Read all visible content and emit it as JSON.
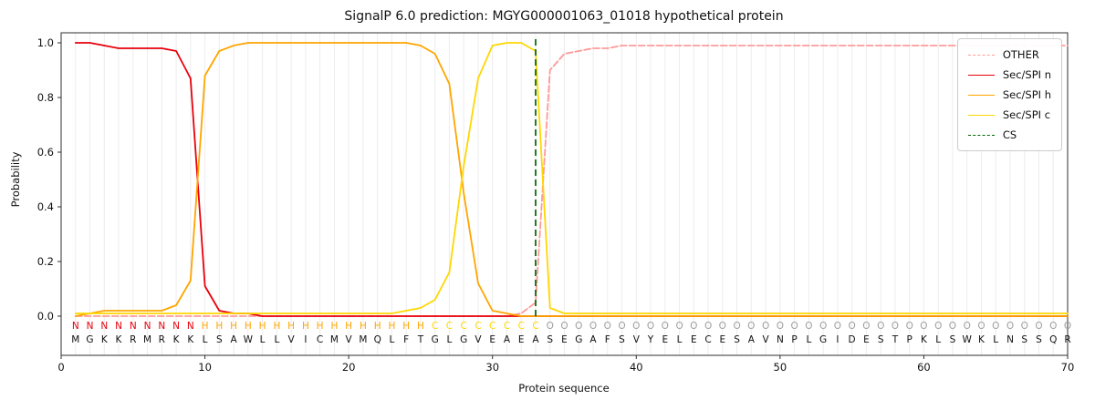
{
  "title": "SignalP 6.0 prediction: MGYG000001063_01018 hypothetical protein",
  "axes": {
    "xlabel": "Protein sequence",
    "ylabel": "Probability",
    "x_ticks": [
      0,
      10,
      20,
      30,
      40,
      50,
      60,
      70
    ],
    "y_ticks": [
      0,
      0.2,
      0.4,
      0.6,
      0.8,
      1
    ]
  },
  "colors": {
    "grid": "#ececec",
    "spine": "#2f2f2f",
    "text": "#111111",
    "region_letters": {
      "N": "#e8000b",
      "H": "#ffa500",
      "C": "#ffd700",
      "O": "#9e9e9e"
    },
    "sequence_letters": "#111111"
  },
  "chart_data": {
    "type": "line",
    "x_range": [
      1,
      70
    ],
    "xlim": [
      0,
      70
    ],
    "ylim": [
      0,
      1
    ],
    "grid": "vertical-line-per-residue",
    "legend_position": "upper right",
    "series": [
      {
        "name": "OTHER",
        "color": "#ff9999",
        "dash": true,
        "values": [
          0,
          0,
          0,
          0,
          0,
          0,
          0,
          0,
          0,
          0,
          0,
          0,
          0,
          0,
          0,
          0,
          0,
          0,
          0,
          0,
          0,
          0,
          0,
          0,
          0,
          0,
          0,
          0,
          0,
          0,
          0,
          0.01,
          0.05,
          0.9,
          0.96,
          0.97,
          0.98,
          0.98,
          0.99,
          0.99,
          0.99,
          0.99,
          0.99,
          0.99,
          0.99,
          0.99,
          0.99,
          0.99,
          0.99,
          0.99,
          0.99,
          0.99,
          0.99,
          0.99,
          0.99,
          0.99,
          0.99,
          0.99,
          0.99,
          0.99,
          0.99,
          0.99,
          0.99,
          0.99,
          0.99,
          0.99,
          0.99,
          0.99,
          0.99,
          0.99
        ]
      },
      {
        "name": "Sec/SPI n",
        "color": "#e8000b",
        "dash": false,
        "values": [
          1,
          1,
          0.99,
          0.98,
          0.98,
          0.98,
          0.98,
          0.97,
          0.87,
          0.11,
          0.02,
          0.01,
          0.01,
          0,
          0,
          0,
          0,
          0,
          0,
          0,
          0,
          0,
          0,
          0,
          0,
          0,
          0,
          0,
          0,
          0,
          0,
          0,
          0,
          0,
          0,
          0,
          0,
          0,
          0,
          0,
          0,
          0,
          0,
          0,
          0,
          0,
          0,
          0,
          0,
          0,
          0,
          0,
          0,
          0,
          0,
          0,
          0,
          0,
          0,
          0,
          0,
          0,
          0,
          0,
          0,
          0,
          0,
          0,
          0,
          0
        ]
      },
      {
        "name": "Sec/SPI h",
        "color": "#ffa500",
        "dash": false,
        "values": [
          0,
          0.01,
          0.02,
          0.02,
          0.02,
          0.02,
          0.02,
          0.04,
          0.13,
          0.88,
          0.97,
          0.99,
          1,
          1,
          1,
          1,
          1,
          1,
          1,
          1,
          1,
          1,
          1,
          1,
          0.99,
          0.96,
          0.85,
          0.45,
          0.12,
          0.02,
          0.01,
          0,
          0,
          0,
          0,
          0,
          0,
          0,
          0,
          0,
          0,
          0,
          0,
          0,
          0,
          0,
          0,
          0,
          0,
          0,
          0,
          0,
          0,
          0,
          0,
          0,
          0,
          0,
          0,
          0,
          0,
          0,
          0,
          0,
          0,
          0,
          0,
          0,
          0,
          0
        ]
      },
      {
        "name": "Sec/SPI c",
        "color": "#ffd700",
        "dash": false,
        "values": [
          0.01,
          0.01,
          0.01,
          0.01,
          0.01,
          0.01,
          0.01,
          0.01,
          0.01,
          0.01,
          0.01,
          0.01,
          0.01,
          0.01,
          0.01,
          0.01,
          0.01,
          0.01,
          0.01,
          0.01,
          0.01,
          0.01,
          0.01,
          0.02,
          0.03,
          0.06,
          0.16,
          0.55,
          0.87,
          0.99,
          1,
          1,
          0.97,
          0.03,
          0.01,
          0.01,
          0.01,
          0.01,
          0.01,
          0.01,
          0.01,
          0.01,
          0.01,
          0.01,
          0.01,
          0.01,
          0.01,
          0.01,
          0.01,
          0.01,
          0.01,
          0.01,
          0.01,
          0.01,
          0.01,
          0.01,
          0.01,
          0.01,
          0.01,
          0.01,
          0.01,
          0.01,
          0.01,
          0.01,
          0.01,
          0.01,
          0.01,
          0.01,
          0.01,
          0.01
        ]
      }
    ],
    "cs": {
      "label": "CS",
      "color": "#006400",
      "dash": true,
      "position": 33
    },
    "sequence": "MGKKRMRKKLSAWLLVICMVMQLFTGLGVEAEASEGAFSVYELECESAVNPLGIDESTPKLSWKLNSSQR",
    "regions": "NNNNNNNNNHHHHHHHHHHHHHHHHCCCCCCCCOOOOOOOOOOOOOOOOOOOOOOOOOOOOOOOOOOOOO"
  }
}
